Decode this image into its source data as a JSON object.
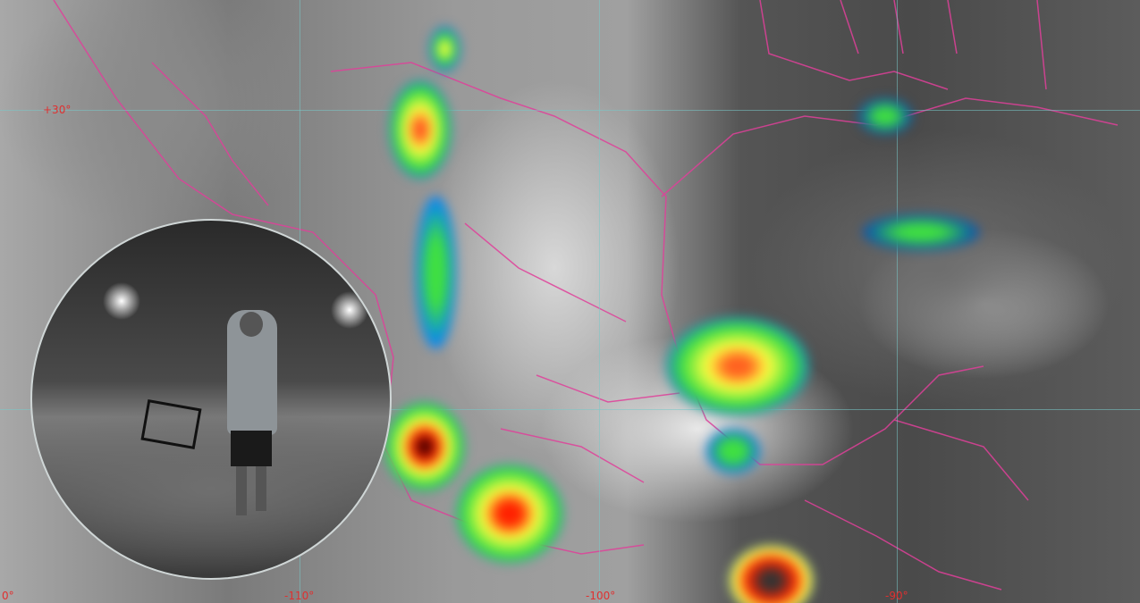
{
  "map": {
    "type": "infrared satellite image",
    "latitude_labels": [
      "+30°"
    ],
    "longitude_labels": [
      "0°",
      "-110°",
      "-100°",
      "-90°"
    ],
    "colors": {
      "border_lines": "#e0409a",
      "gridlines": "#78c8c8",
      "label": "#e03030",
      "cold_cloud_tops": [
        "#00a0ff",
        "#40e040",
        "#ffff00",
        "#ff2000",
        "#400000"
      ]
    }
  },
  "inset_photo": {
    "subject": "person walking in heavy rain at night carrying a chair"
  }
}
